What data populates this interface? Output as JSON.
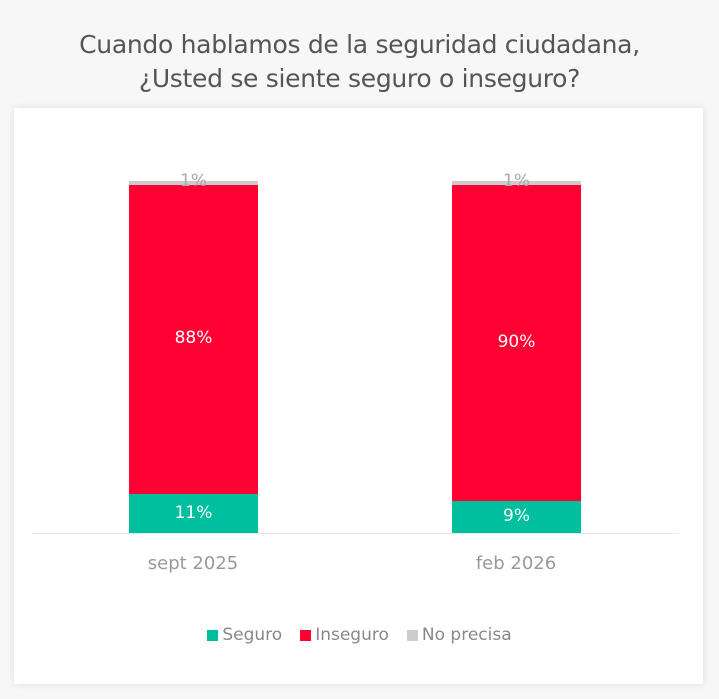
{
  "chart_data": {
    "type": "bar",
    "stacked": true,
    "title": "Cuando hablamos de la seguridad ciudadana, ¿Usted se siente seguro o inseguro?",
    "categories": [
      "sept 2025",
      "feb 2026"
    ],
    "series": [
      {
        "name": "Seguro",
        "color": "#00bf9f",
        "values": [
          11,
          9
        ]
      },
      {
        "name": "Inseguro",
        "color": "#ff0033",
        "values": [
          88,
          90
        ]
      },
      {
        "name": "No precisa",
        "color": "#cccccc",
        "values": [
          1,
          1
        ]
      }
    ],
    "xlabel": "",
    "ylabel": "",
    "ylim": [
      0,
      100
    ],
    "grid": false,
    "legend_position": "bottom"
  },
  "title": {
    "line1": "Cuando hablamos de la seguridad ciudadana,",
    "line2": "¿Usted se siente seguro o inseguro?"
  },
  "bars": [
    {
      "category": "sept 2025",
      "seguro": "11%",
      "inseguro": "88%",
      "no_precisa": "1%"
    },
    {
      "category": "feb 2026",
      "seguro": "9%",
      "inseguro": "90%",
      "no_precisa": "1%"
    }
  ],
  "legend": [
    {
      "label": "Seguro",
      "color": "#00bf9f"
    },
    {
      "label": "Inseguro",
      "color": "#ff0033"
    },
    {
      "label": "No precisa",
      "color": "#cccccc"
    }
  ]
}
